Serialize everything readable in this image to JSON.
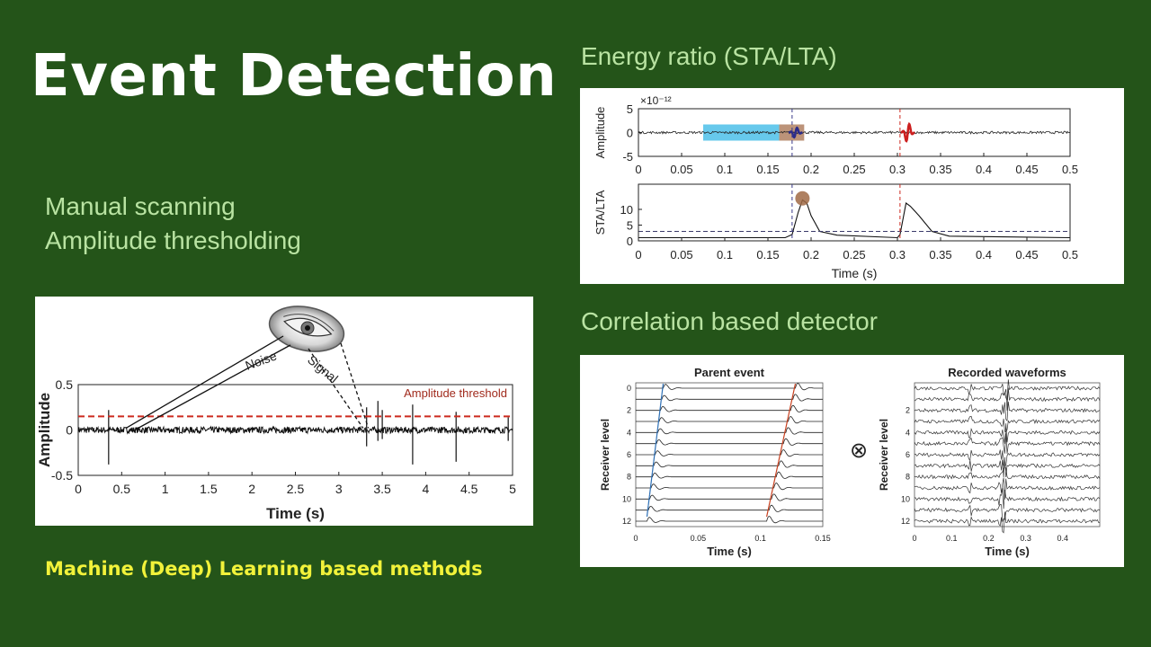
{
  "slide": {
    "title": "Event Detection",
    "bullets": [
      "Manual scanning",
      "Amplitude thresholding"
    ],
    "ml_methods": "Machine (Deep) Learning based methods",
    "sta_heading": "Energy ratio (STA/LTA)",
    "corr_heading": "Correlation based detector",
    "colors": {
      "background": "#245419",
      "heading": "#b9e3a2",
      "highlight": "#f2f23a",
      "threshold": "#cc2a1f"
    }
  },
  "chart_data": [
    {
      "type": "line",
      "title": "",
      "xlabel": "Time (s)",
      "ylabel": "Amplitude",
      "xlim": [
        0,
        5
      ],
      "ylim": [
        -0.5,
        0.5
      ],
      "xticks": [
        "0",
        "0.5",
        "1",
        "1.5",
        "2",
        "2.5",
        "3",
        "3.5",
        "4",
        "4.5",
        "5"
      ],
      "yticks": [
        "0.5",
        "0",
        "-0.5"
      ],
      "threshold": 0.15,
      "threshold_label": "Amplitude threshold",
      "annotations": [
        "Noise",
        "Signal"
      ],
      "spikes": [
        {
          "x": 0.35,
          "y": 0.22,
          "y_min": -0.38
        },
        {
          "x": 3.32,
          "y": 0.25,
          "y_min": -0.18
        },
        {
          "x": 3.45,
          "y": 0.32,
          "y_min": -0.12
        },
        {
          "x": 3.5,
          "y": 0.22,
          "y_min": -0.1
        },
        {
          "x": 3.85,
          "y": 0.28,
          "y_min": -0.38
        },
        {
          "x": 4.35,
          "y": 0.2,
          "y_min": -0.35
        },
        {
          "x": 4.95,
          "y": 0.14,
          "y_min": -0.12
        }
      ]
    },
    {
      "type": "line",
      "title": "",
      "xlabel": "",
      "ylabel": "Amplitude",
      "exponent": "×10⁻¹²",
      "xlim": [
        0,
        0.5
      ],
      "ylim": [
        -5,
        5
      ],
      "xticks": [
        "0",
        "0.05",
        "0.1",
        "0.15",
        "0.2",
        "0.25",
        "0.3",
        "0.35",
        "0.4",
        "0.45",
        "0.5"
      ],
      "yticks": [
        "5",
        "0",
        "-5"
      ],
      "lta_window": [
        0.075,
        0.163
      ],
      "sta_window": [
        0.163,
        0.192
      ],
      "event_times": [
        0.178,
        0.303
      ],
      "events": [
        {
          "t": 0.18,
          "amplitude": 1.2,
          "color": "#2b2b8a"
        },
        {
          "t": 0.31,
          "amplitude": 2.2,
          "color": "#cc1f1f"
        }
      ]
    },
    {
      "type": "line",
      "title": "",
      "xlabel": "Time (s)",
      "ylabel": "STA/LTA",
      "xlim": [
        0,
        0.5
      ],
      "ylim": [
        0,
        18
      ],
      "xticks": [
        "0",
        "0.05",
        "0.1",
        "0.15",
        "0.2",
        "0.25",
        "0.3",
        "0.35",
        "0.4",
        "0.45",
        "0.5"
      ],
      "yticks": [
        "10",
        "5",
        "0"
      ],
      "trigger_level": 3,
      "x": [
        0,
        0.17,
        0.178,
        0.185,
        0.19,
        0.195,
        0.2,
        0.21,
        0.23,
        0.3,
        0.303,
        0.31,
        0.315,
        0.325,
        0.34,
        0.36,
        0.5
      ],
      "values": [
        1,
        1,
        2,
        9,
        13,
        12,
        8,
        3,
        1.8,
        1,
        2,
        12,
        11,
        8,
        3,
        1.5,
        1
      ]
    },
    {
      "type": "line",
      "title": "Parent event",
      "xlabel": "Time (s)",
      "ylabel": "Receiver level",
      "xlim": [
        0,
        0.15
      ],
      "ylim": [
        0,
        12
      ],
      "xticks": [
        "0",
        "0.05",
        "0.1",
        "0.15"
      ],
      "yticks": [
        "0",
        "2",
        "4",
        "6",
        "8",
        "10",
        "12"
      ],
      "traces": 13,
      "p_arrival": {
        "level_0": 0.022,
        "level_12": 0.009
      },
      "s_arrival": {
        "level_0": 0.128,
        "level_12": 0.105
      }
    },
    {
      "type": "line",
      "title": "Recorded waveforms",
      "xlabel": "Time (s)",
      "ylabel": "Receiver level",
      "xlim": [
        0,
        0.5
      ],
      "ylim": [
        0,
        12
      ],
      "xticks": [
        "0",
        "0.1",
        "0.2",
        "0.3",
        "0.4"
      ],
      "yticks": [
        "2",
        "4",
        "6",
        "8",
        "10",
        "12"
      ],
      "traces": 13,
      "event_times": [
        0.15,
        0.235,
        0.245
      ],
      "operator": "⊗"
    }
  ]
}
